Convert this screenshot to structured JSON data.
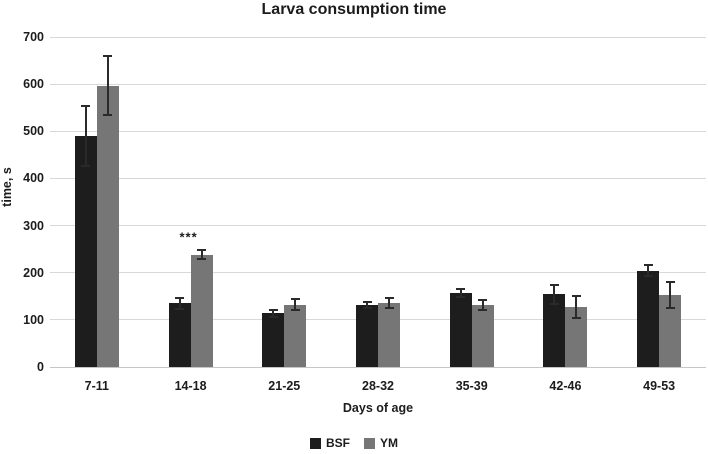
{
  "figure": {
    "title": "Larva consumption time"
  },
  "chart_data": {
    "type": "bar",
    "title": "Larva consumption time",
    "xlabel": "Days of age",
    "ylabel": "time, s",
    "ylim": [
      0,
      700
    ],
    "yticks": [
      0,
      100,
      200,
      300,
      400,
      500,
      600,
      700
    ],
    "grid": "horizontal",
    "legend_position": "bottom",
    "categories": [
      "7-11",
      "14-18",
      "21-25",
      "28-32",
      "35-39",
      "42-46",
      "49-53"
    ],
    "series": [
      {
        "name": "BSF",
        "color": "#1d1d1d",
        "values": [
          490,
          135,
          114,
          131,
          157,
          154,
          204
        ],
        "errors": [
          65,
          14,
          10,
          8,
          11,
          23,
          14
        ]
      },
      {
        "name": "YM",
        "color": "#767676",
        "values": [
          597,
          238,
          132,
          136,
          131,
          127,
          153
        ],
        "errors": [
          64,
          12,
          14,
          12,
          13,
          26,
          30
        ]
      }
    ],
    "annotations": [
      {
        "text": "***",
        "category_index": 1,
        "y": 275
      }
    ]
  },
  "style": {
    "gridline_color": "#d8d8d8",
    "baseline_color": "#c6c6c6",
    "errorbar_color": "#2a2a2a",
    "text_color": "#1c1c1c",
    "background": "#ffffff"
  }
}
